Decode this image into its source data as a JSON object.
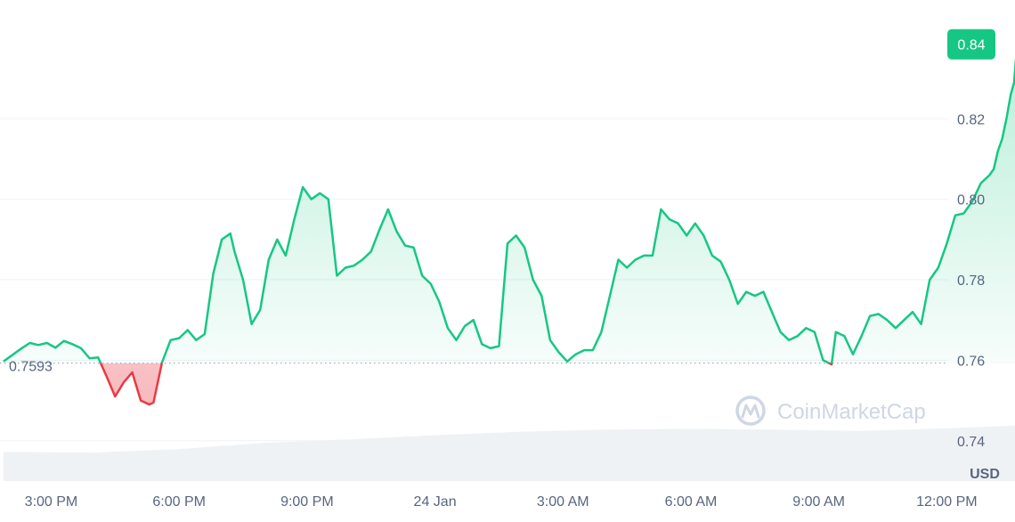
{
  "watermark": {
    "text": "CoinMarketCap"
  },
  "colors": {
    "up": "#16c784",
    "down": "#ea3943",
    "grid": "#eff2f5",
    "axis_text": "#58667e",
    "volume": "#eff2f5",
    "watermark": "#cfd6e4"
  },
  "chart_data": {
    "type": "line",
    "currency": "USD",
    "reference_price": 0.7593,
    "reference_label": "0.7593",
    "current_price_label": "0.84",
    "ylim": [
      0.73,
      0.8495
    ],
    "y_ticks": [
      0.74,
      0.76,
      0.78,
      0.8,
      0.82
    ],
    "y_tick_labels": [
      "0.74",
      "0.76",
      "0.78",
      "0.80",
      "0.82"
    ],
    "xlim": [
      13.8,
      37.6
    ],
    "x_ticks": [
      15,
      18,
      21,
      24,
      27,
      30,
      33,
      36
    ],
    "x_tick_labels": [
      "3:00 PM",
      "6:00 PM",
      "9:00 PM",
      "24 Jan",
      "3:00 AM",
      "6:00 AM",
      "9:00 AM",
      "12:00 PM"
    ],
    "grid": true,
    "series": [
      {
        "points": [
          [
            13.88,
            0.7597
          ],
          [
            14.3,
            0.7629
          ],
          [
            14.5,
            0.7643
          ],
          [
            14.7,
            0.7638
          ],
          [
            14.9,
            0.7643
          ],
          [
            15.1,
            0.7631
          ],
          [
            15.3,
            0.7648
          ],
          [
            15.5,
            0.764
          ],
          [
            15.7,
            0.763
          ],
          [
            15.9,
            0.7605
          ],
          [
            16.1,
            0.7607
          ],
          [
            16.3,
            0.756
          ],
          [
            16.5,
            0.751
          ],
          [
            16.7,
            0.7545
          ],
          [
            16.9,
            0.757
          ],
          [
            17.1,
            0.75
          ],
          [
            17.3,
            0.749
          ],
          [
            17.4,
            0.7495
          ],
          [
            17.6,
            0.7595
          ],
          [
            17.8,
            0.765
          ],
          [
            18.0,
            0.7655
          ],
          [
            18.2,
            0.7675
          ],
          [
            18.4,
            0.765
          ],
          [
            18.6,
            0.7665
          ],
          [
            18.8,
            0.7815
          ],
          [
            19.0,
            0.79
          ],
          [
            19.2,
            0.7915
          ],
          [
            19.3,
            0.787
          ],
          [
            19.5,
            0.78
          ],
          [
            19.7,
            0.769
          ],
          [
            19.9,
            0.7725
          ],
          [
            20.1,
            0.785
          ],
          [
            20.3,
            0.79
          ],
          [
            20.5,
            0.786
          ],
          [
            20.7,
            0.795
          ],
          [
            20.9,
            0.803
          ],
          [
            21.1,
            0.8
          ],
          [
            21.3,
            0.8015
          ],
          [
            21.5,
            0.8
          ],
          [
            21.7,
            0.781
          ],
          [
            21.9,
            0.783
          ],
          [
            22.1,
            0.7835
          ],
          [
            22.3,
            0.785
          ],
          [
            22.5,
            0.787
          ],
          [
            22.7,
            0.7925
          ],
          [
            22.9,
            0.7975
          ],
          [
            23.1,
            0.792
          ],
          [
            23.3,
            0.7885
          ],
          [
            23.5,
            0.788
          ],
          [
            23.7,
            0.781
          ],
          [
            23.9,
            0.779
          ],
          [
            24.1,
            0.7745
          ],
          [
            24.3,
            0.768
          ],
          [
            24.5,
            0.765
          ],
          [
            24.7,
            0.7685
          ],
          [
            24.9,
            0.77
          ],
          [
            25.1,
            0.764
          ],
          [
            25.3,
            0.763
          ],
          [
            25.5,
            0.7635
          ],
          [
            25.7,
            0.789
          ],
          [
            25.9,
            0.791
          ],
          [
            26.1,
            0.788
          ],
          [
            26.3,
            0.78
          ],
          [
            26.5,
            0.776
          ],
          [
            26.7,
            0.765
          ],
          [
            26.9,
            0.762
          ],
          [
            27.1,
            0.7597
          ],
          [
            27.3,
            0.7615
          ],
          [
            27.5,
            0.7625
          ],
          [
            27.7,
            0.7625
          ],
          [
            27.9,
            0.767
          ],
          [
            28.1,
            0.776
          ],
          [
            28.3,
            0.785
          ],
          [
            28.5,
            0.783
          ],
          [
            28.7,
            0.785
          ],
          [
            28.9,
            0.786
          ],
          [
            29.1,
            0.786
          ],
          [
            29.3,
            0.7975
          ],
          [
            29.5,
            0.795
          ],
          [
            29.7,
            0.794
          ],
          [
            29.9,
            0.791
          ],
          [
            30.1,
            0.794
          ],
          [
            30.3,
            0.791
          ],
          [
            30.5,
            0.786
          ],
          [
            30.7,
            0.7845
          ],
          [
            30.9,
            0.78
          ],
          [
            31.1,
            0.774
          ],
          [
            31.3,
            0.777
          ],
          [
            31.5,
            0.776
          ],
          [
            31.7,
            0.777
          ],
          [
            31.9,
            0.772
          ],
          [
            32.1,
            0.767
          ],
          [
            32.3,
            0.765
          ],
          [
            32.5,
            0.766
          ],
          [
            32.7,
            0.768
          ],
          [
            32.9,
            0.767
          ],
          [
            33.1,
            0.76
          ],
          [
            33.3,
            0.759
          ],
          [
            33.4,
            0.767
          ],
          [
            33.6,
            0.766
          ],
          [
            33.8,
            0.7615
          ],
          [
            34.0,
            0.766
          ],
          [
            34.2,
            0.771
          ],
          [
            34.4,
            0.7715
          ],
          [
            34.6,
            0.77
          ],
          [
            34.8,
            0.768
          ],
          [
            35.0,
            0.77
          ],
          [
            35.2,
            0.772
          ],
          [
            35.4,
            0.769
          ],
          [
            35.6,
            0.78
          ],
          [
            35.8,
            0.783
          ],
          [
            36.0,
            0.789
          ],
          [
            36.2,
            0.796
          ],
          [
            36.4,
            0.7965
          ],
          [
            36.6,
            0.7995
          ],
          [
            36.8,
            0.804
          ],
          [
            37.0,
            0.806
          ],
          [
            37.1,
            0.8075
          ],
          [
            37.2,
            0.812
          ],
          [
            37.3,
            0.815
          ],
          [
            37.4,
            0.82
          ],
          [
            37.5,
            0.826
          ],
          [
            37.58,
            0.829
          ],
          [
            37.65,
            0.8385
          ]
        ]
      }
    ],
    "volume": [
      [
        13.88,
        0.42
      ],
      [
        16.0,
        0.41
      ],
      [
        18.0,
        0.46
      ],
      [
        20.0,
        0.55
      ],
      [
        22.0,
        0.6
      ],
      [
        24.0,
        0.66
      ],
      [
        26.0,
        0.71
      ],
      [
        28.0,
        0.74
      ],
      [
        30.0,
        0.75
      ],
      [
        32.0,
        0.74
      ],
      [
        34.0,
        0.72
      ],
      [
        36.0,
        0.76
      ],
      [
        37.65,
        0.8
      ]
    ]
  }
}
